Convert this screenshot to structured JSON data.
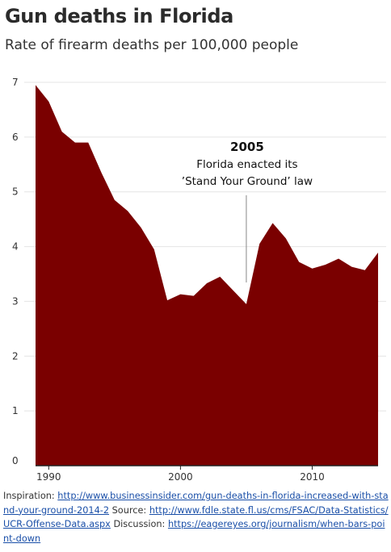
{
  "title": "Gun deaths in Florida",
  "subtitle": "Rate of firearm deaths per 100,000 people",
  "annotation": {
    "year": "2005",
    "text_line1": "Florida enacted its",
    "text_line2": "’Stand Your Ground’ law"
  },
  "footer": {
    "inspiration_label": "Inspiration:",
    "inspiration_url": "http://www.businessinsider.com/gun-deaths-in-florida-increased-with-stand-your-ground-2014-2",
    "source_label": "Source:",
    "source_url": "http://www.fdle.state.fl.us/cms/FSAC/Data-Statistics/UCR-Offense-Data.aspx",
    "discussion_label": "Discussion:",
    "discussion_url": "https://eagereyes.org/journalism/when-bars-point-down"
  },
  "colors": {
    "area": "#7a0000",
    "grid": "#e4e4e4",
    "axis": "#222222",
    "annotation_line": "#888888"
  },
  "chart_data": {
    "type": "area",
    "x": [
      1989,
      1990,
      1991,
      1992,
      1993,
      1994,
      1995,
      1996,
      1997,
      1998,
      1999,
      2000,
      2001,
      2002,
      2003,
      2004,
      2005,
      2006,
      2007,
      2008,
      2009,
      2010,
      2011,
      2012,
      2013,
      2014,
      2015
    ],
    "values": [
      6.95,
      6.65,
      6.1,
      5.9,
      5.9,
      5.35,
      4.85,
      4.65,
      4.35,
      3.95,
      3.02,
      3.13,
      3.1,
      3.33,
      3.45,
      3.2,
      2.95,
      4.05,
      4.43,
      4.15,
      3.72,
      3.6,
      3.67,
      3.78,
      3.63,
      3.57,
      3.89
    ],
    "ylim": [
      0,
      7
    ],
    "yticks": [
      0,
      1,
      2,
      3,
      4,
      5,
      6,
      7
    ],
    "xticks": [
      1990,
      2000,
      2010
    ],
    "annotation_year": 2005,
    "grid": true
  }
}
